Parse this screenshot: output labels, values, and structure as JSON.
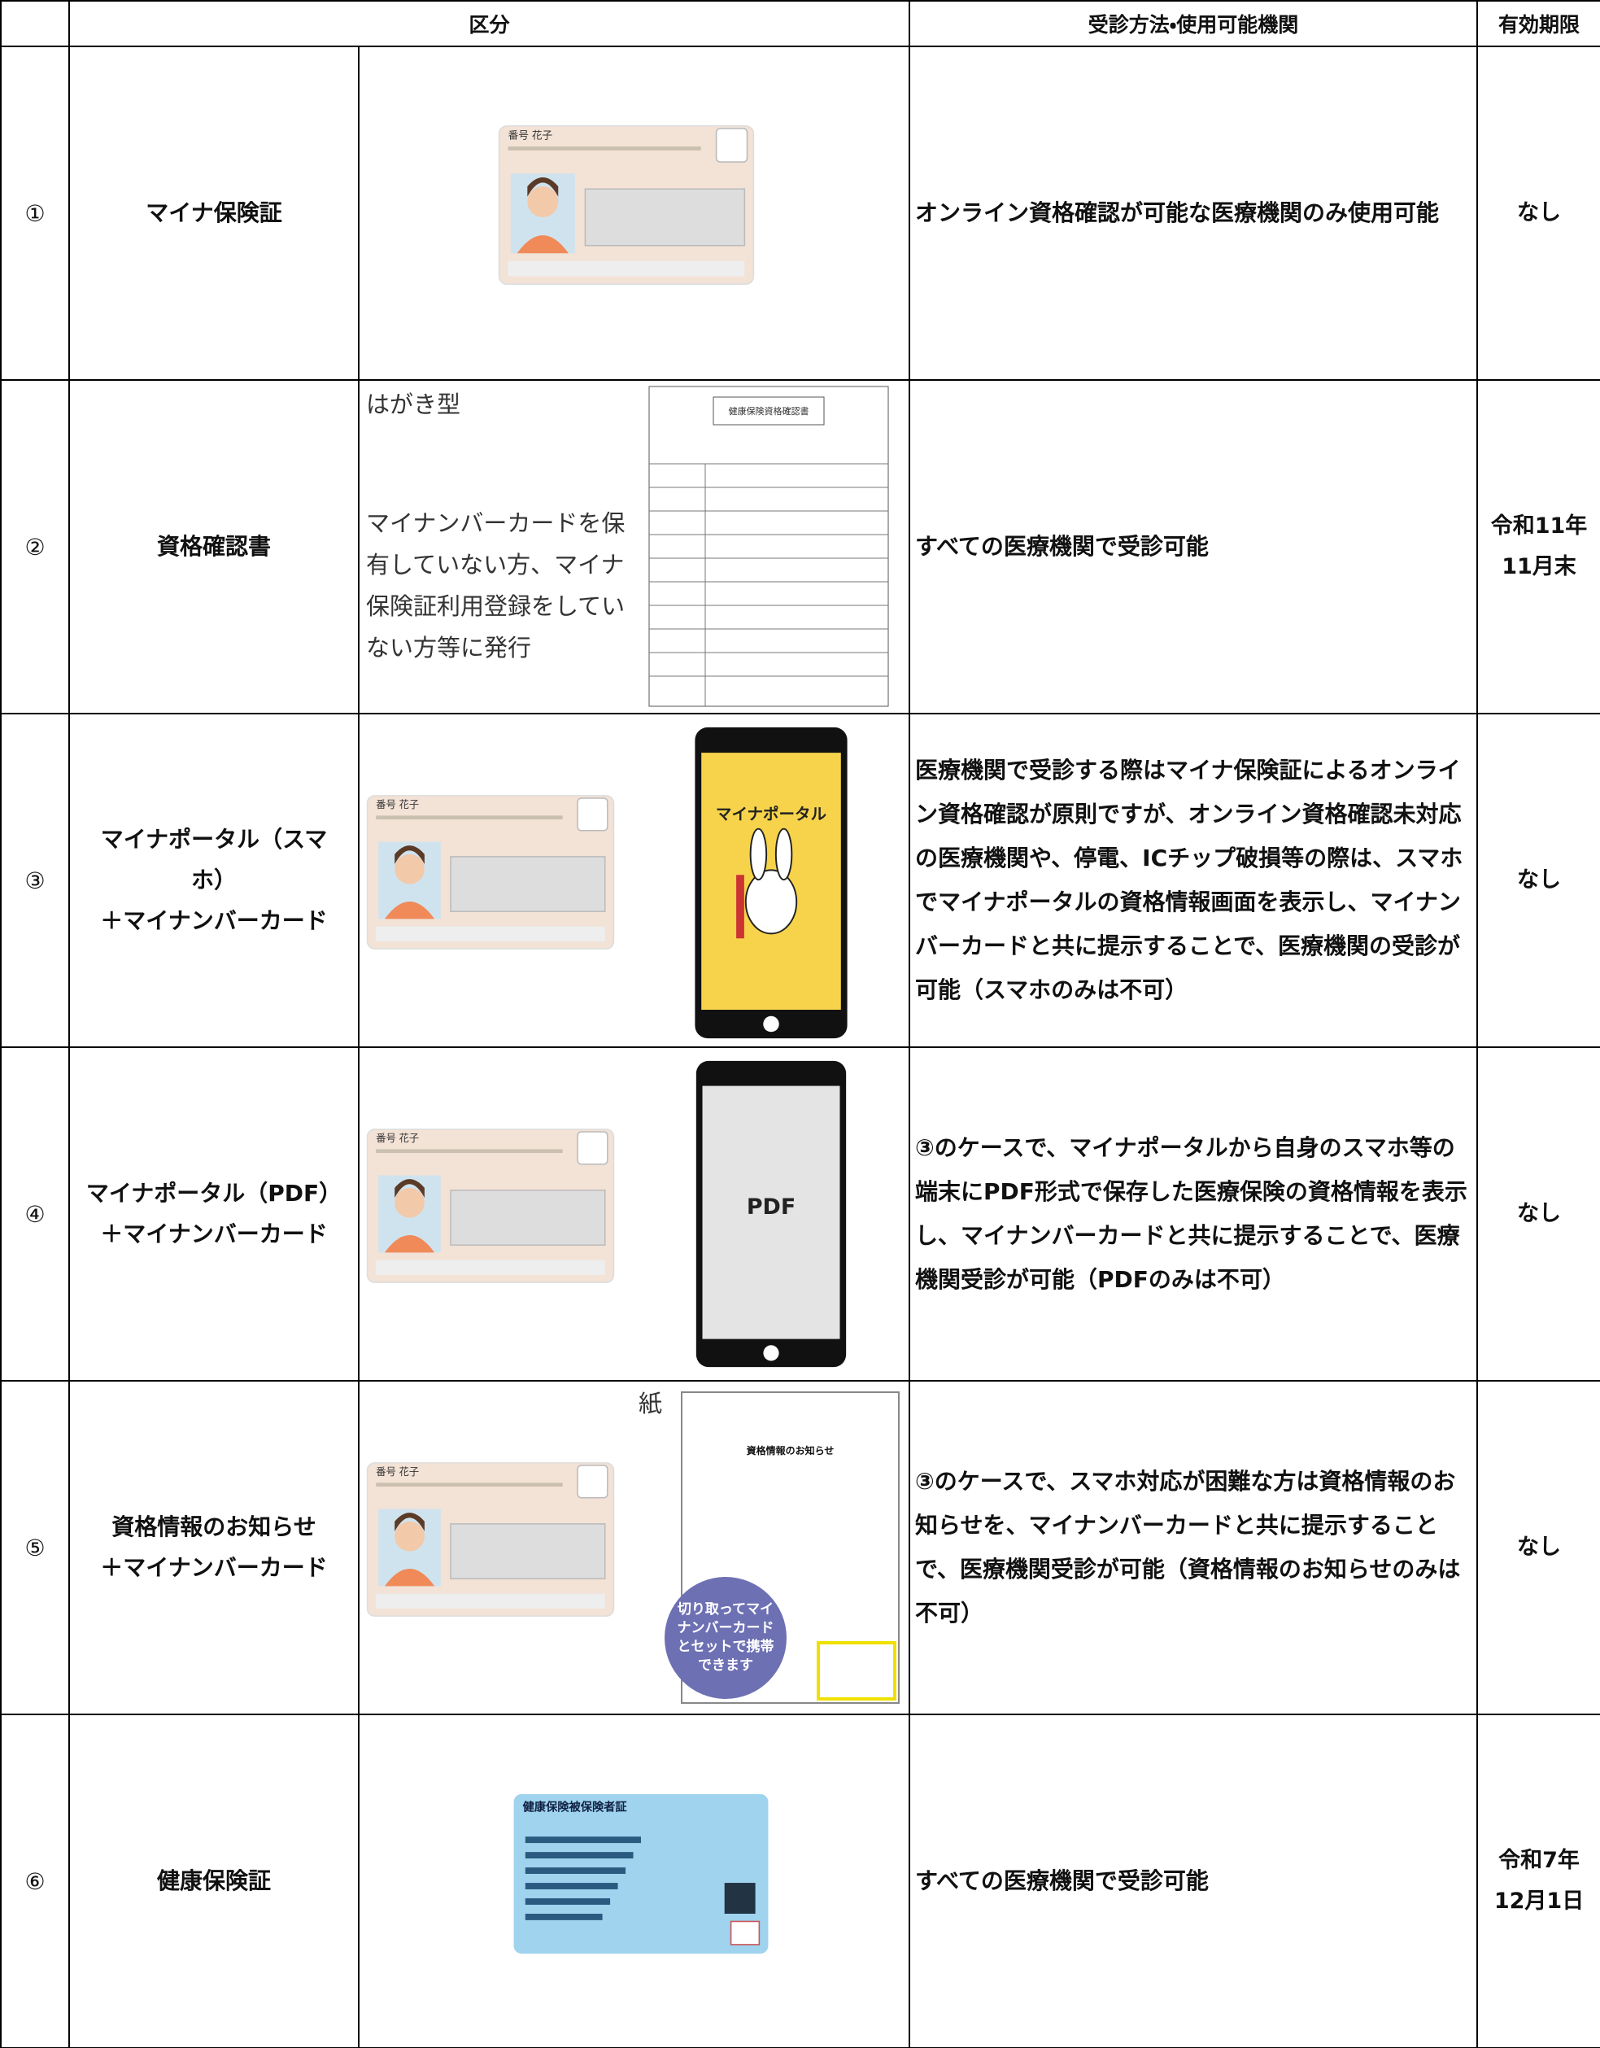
{
  "table": {
    "headers": {
      "category": "区分",
      "method": "受診方法・使用可能機関",
      "expiry": "有効期限"
    },
    "rows": [
      {
        "no": "①",
        "name": "マイナ保険証",
        "method": "オンライン資格確認が可能な医療機関のみ使用可能",
        "expiry": "なし"
      },
      {
        "no": "②",
        "name": "資格確認書",
        "method": "すべての医療機関で受診可能",
        "expiry": "令和11年\n11月末"
      },
      {
        "no": "③",
        "name": "マイナポータル（スマホ）\n＋マイナンバーカード",
        "method": "医療機関で受診する際はマイナ保険証によるオンライン資格確認が原則ですが、オンライン資格確認未対応の医療機関や、停電、ICチップ破損等の際は、スマホでマイナポータルの資格情報画面を表示し、マイナンバーカードと共に提示することで、医療機関の受診が可能（スマホのみは不可）",
        "expiry": "なし"
      },
      {
        "no": "④",
        "name": "マイナポータル（PDF）\n＋マイナンバーカード",
        "method": "③のケースで、マイナポータルから自身のスマホ等の端末にPDF形式で保存した医療保険の資格情報を表示し、マイナンバーカードと共に提示することで、医療機関受診が可能（PDFのみは不可）",
        "expiry": "なし"
      },
      {
        "no": "⑤",
        "name": "資格情報のお知らせ\n＋マイナンバーカード",
        "method": "③のケースで、スマホ対応が困難な方は資格情報のお知らせを、マイナンバーカードと共に提示することで、医療機関受診が可能（資格情報のお知らせのみは不可）",
        "expiry": "なし"
      },
      {
        "no": "⑥",
        "name": "健康保険証",
        "method": "すべての医療機関で受診可能",
        "expiry": "令和7年\n12月1日"
      }
    ]
  },
  "images": {
    "card_name": "番号 花子",
    "hagaki_label": "はがき型",
    "hagaki_note": "マイナンバーカードを保有していない方、マイナ保険証利用登録をしていない方等に発行",
    "form_title": "健康保険資格確認書",
    "portal_label": "マイナポータル",
    "pdf_label": "PDF",
    "paper_label": "紙",
    "notice_title": "資格情報のお知らせ",
    "bubble": "切り取ってマイナンバーカードとセットで携帯できます",
    "health_card_title": "健康保険被保険者証"
  }
}
